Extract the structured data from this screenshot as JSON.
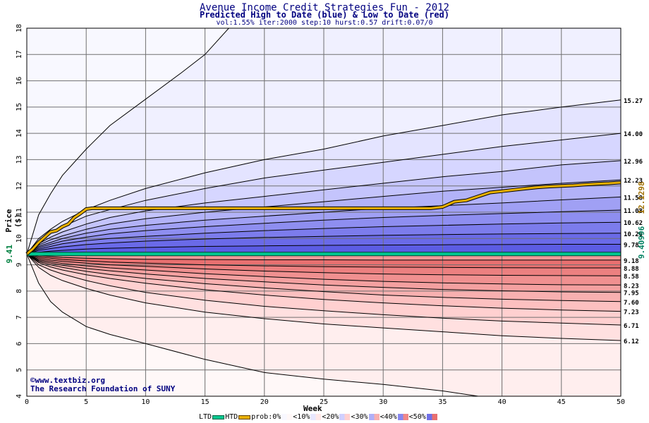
{
  "header": {
    "title": "Avenue Income Credit Strategies Fun - 2012",
    "subtitle": "Predicted High to Date (blue) &  Low to Date (red)",
    "params": "vol:1.55% iter:2000 step:10 hurst:0.57 drift:0.07/0"
  },
  "credit": {
    "line1": "©www.textbiz.org",
    "line2": "The Research Foundation of SUNY"
  },
  "legend": {
    "ltd": "LTD",
    "htd": "HTD",
    "prob": "prob:0%",
    "b10": "<10%",
    "b20": "<20%",
    "b30": "<30%",
    "b40": "<40%",
    "b50": "<50%"
  },
  "colors": {
    "ltd_line": "#00c890",
    "htd_line": "#e8b000",
    "blue_bands": [
      "#f0f0ff",
      "#e0e0ff",
      "#c8c8ff",
      "#a8a8f8",
      "#8888f0"
    ],
    "red_bands": [
      "#fff2f2",
      "#ffe0e0",
      "#ffc8c8",
      "#f8a8a8",
      "#f08080"
    ]
  },
  "chart_data": {
    "type": "area",
    "xlabel": "Week",
    "ylabel": "Price ($)",
    "xlim": [
      0,
      50
    ],
    "ylim": [
      4,
      18
    ],
    "x_ticks": [
      0,
      5,
      10,
      15,
      20,
      25,
      30,
      35,
      40,
      45,
      50
    ],
    "y_ticks": [
      4,
      5,
      6,
      7,
      8,
      9,
      10,
      11,
      12,
      13,
      14,
      15,
      16,
      17,
      18
    ],
    "start_price": "9.41",
    "start_price_value": 9.41,
    "ltd_level": 9.41,
    "ltd_label": "9.40996",
    "htd_label": "12.1298",
    "right_labels": [
      "15.27",
      "14.00",
      "12.96",
      "12.23",
      "11.58",
      "11.08",
      "10.62",
      "10.20",
      "9.78",
      "9.18",
      "8.88",
      "8.58",
      "8.23",
      "7.95",
      "7.60",
      "7.23",
      "6.71",
      "6.12"
    ],
    "upper_contours": [
      {
        "end": 18.0,
        "x": [
          0,
          1,
          2,
          3,
          5,
          7,
          10,
          13,
          15,
          17
        ],
        "y": [
          9.41,
          10.9,
          11.7,
          12.4,
          13.4,
          14.3,
          15.3,
          16.3,
          17.0,
          18.0
        ]
      },
      {
        "end": 15.27,
        "x": [
          0,
          1,
          2,
          3,
          5,
          7,
          10,
          15,
          20,
          25,
          30,
          35,
          40,
          45,
          50
        ],
        "y": [
          9.41,
          10.0,
          10.35,
          10.65,
          11.1,
          11.45,
          11.9,
          12.5,
          13.0,
          13.4,
          13.9,
          14.3,
          14.7,
          15.0,
          15.27
        ]
      },
      {
        "end": 14.0,
        "x": [
          0,
          1,
          2,
          3,
          5,
          7,
          10,
          15,
          20,
          25,
          30,
          35,
          40,
          45,
          50
        ],
        "y": [
          9.41,
          9.9,
          10.2,
          10.45,
          10.85,
          11.1,
          11.45,
          11.9,
          12.3,
          12.6,
          12.9,
          13.2,
          13.5,
          13.75,
          14.0
        ]
      },
      {
        "end": 12.96,
        "x": [
          0,
          1,
          2,
          3,
          5,
          7,
          10,
          15,
          20,
          25,
          30,
          35,
          40,
          45,
          50
        ],
        "y": [
          9.41,
          9.8,
          10.05,
          10.25,
          10.55,
          10.8,
          11.05,
          11.35,
          11.6,
          11.85,
          12.1,
          12.35,
          12.55,
          12.8,
          12.96
        ]
      },
      {
        "end": 12.23,
        "x": [
          0,
          1,
          2,
          3,
          5,
          7,
          10,
          15,
          20,
          25,
          30,
          35,
          40,
          45,
          50
        ],
        "y": [
          9.41,
          9.75,
          9.95,
          10.1,
          10.35,
          10.55,
          10.75,
          11.0,
          11.2,
          11.4,
          11.6,
          11.8,
          11.95,
          12.1,
          12.23
        ]
      },
      {
        "end": 11.58,
        "x": [
          0,
          1,
          2,
          3,
          5,
          7,
          10,
          15,
          20,
          25,
          30,
          35,
          40,
          45,
          50
        ],
        "y": [
          9.41,
          9.7,
          9.85,
          10.0,
          10.2,
          10.35,
          10.5,
          10.7,
          10.85,
          11.0,
          11.15,
          11.25,
          11.35,
          11.47,
          11.58
        ]
      },
      {
        "end": 11.08,
        "x": [
          0,
          1,
          2,
          3,
          5,
          7,
          10,
          15,
          20,
          25,
          30,
          35,
          40,
          45,
          50
        ],
        "y": [
          9.41,
          9.65,
          9.78,
          9.9,
          10.05,
          10.18,
          10.3,
          10.45,
          10.58,
          10.7,
          10.8,
          10.88,
          10.95,
          11.02,
          11.08
        ]
      },
      {
        "end": 10.62,
        "x": [
          0,
          1,
          2,
          3,
          5,
          7,
          10,
          15,
          20,
          25,
          30,
          35,
          40,
          45,
          50
        ],
        "y": [
          9.41,
          9.6,
          9.7,
          9.8,
          9.92,
          10.0,
          10.08,
          10.2,
          10.3,
          10.38,
          10.45,
          10.5,
          10.55,
          10.59,
          10.62
        ]
      },
      {
        "end": 10.2,
        "x": [
          0,
          1,
          2,
          3,
          5,
          7,
          10,
          15,
          20,
          25,
          30,
          35,
          40,
          45,
          50
        ],
        "y": [
          9.41,
          9.55,
          9.62,
          9.68,
          9.77,
          9.83,
          9.9,
          9.98,
          10.04,
          10.08,
          10.12,
          10.15,
          10.17,
          10.19,
          10.2
        ]
      },
      {
        "end": 9.78,
        "x": [
          0,
          1,
          2,
          3,
          5,
          7,
          10,
          15,
          20,
          25,
          30,
          35,
          40,
          45,
          50
        ],
        "y": [
          9.41,
          9.48,
          9.52,
          9.55,
          9.6,
          9.63,
          9.66,
          9.7,
          9.72,
          9.74,
          9.75,
          9.76,
          9.77,
          9.78,
          9.78
        ]
      }
    ],
    "lower_contours": [
      {
        "end": 4.0,
        "x": [
          0,
          1,
          2,
          3,
          5,
          7,
          10,
          15,
          20,
          25,
          30,
          35,
          38
        ],
        "y": [
          9.41,
          8.3,
          7.6,
          7.2,
          6.65,
          6.35,
          6.0,
          5.4,
          4.9,
          4.65,
          4.45,
          4.2,
          4.0
        ]
      },
      {
        "end": 6.12,
        "x": [
          0,
          1,
          2,
          3,
          5,
          7,
          10,
          15,
          20,
          25,
          30,
          35,
          40,
          45,
          50
        ],
        "y": [
          9.41,
          8.9,
          8.6,
          8.4,
          8.1,
          7.85,
          7.55,
          7.2,
          6.95,
          6.75,
          6.6,
          6.45,
          6.3,
          6.2,
          6.12
        ]
      },
      {
        "end": 6.71,
        "x": [
          0,
          1,
          2,
          3,
          5,
          7,
          10,
          15,
          20,
          25,
          30,
          35,
          40,
          45,
          50
        ],
        "y": [
          9.41,
          9.0,
          8.8,
          8.65,
          8.4,
          8.2,
          7.95,
          7.65,
          7.42,
          7.25,
          7.1,
          6.97,
          6.86,
          6.78,
          6.71
        ]
      },
      {
        "end": 7.23,
        "x": [
          0,
          1,
          2,
          3,
          5,
          7,
          10,
          15,
          20,
          25,
          30,
          35,
          40,
          45,
          50
        ],
        "y": [
          9.41,
          9.08,
          8.92,
          8.8,
          8.62,
          8.48,
          8.3,
          8.05,
          7.85,
          7.68,
          7.55,
          7.44,
          7.35,
          7.28,
          7.23
        ]
      },
      {
        "end": 7.6,
        "x": [
          0,
          1,
          2,
          3,
          5,
          7,
          10,
          15,
          20,
          25,
          30,
          35,
          40,
          45,
          50
        ],
        "y": [
          9.41,
          9.12,
          9.0,
          8.9,
          8.75,
          8.63,
          8.48,
          8.28,
          8.12,
          7.98,
          7.85,
          7.76,
          7.69,
          7.64,
          7.6
        ]
      },
      {
        "end": 7.95,
        "x": [
          0,
          1,
          2,
          3,
          5,
          7,
          10,
          15,
          20,
          25,
          30,
          35,
          40,
          45,
          50
        ],
        "y": [
          9.41,
          9.16,
          9.06,
          8.98,
          8.86,
          8.77,
          8.65,
          8.48,
          8.35,
          8.23,
          8.14,
          8.06,
          8.01,
          7.97,
          7.95
        ]
      },
      {
        "end": 8.23,
        "x": [
          0,
          1,
          2,
          3,
          5,
          7,
          10,
          15,
          20,
          25,
          30,
          35,
          40,
          45,
          50
        ],
        "y": [
          9.41,
          9.2,
          9.12,
          9.05,
          8.96,
          8.88,
          8.8,
          8.66,
          8.55,
          8.45,
          8.37,
          8.31,
          8.27,
          8.24,
          8.23
        ]
      },
      {
        "end": 8.58,
        "x": [
          0,
          1,
          2,
          3,
          5,
          7,
          10,
          15,
          20,
          25,
          30,
          35,
          40,
          45,
          50
        ],
        "y": [
          9.41,
          9.25,
          9.18,
          9.13,
          9.06,
          9.0,
          8.94,
          8.84,
          8.76,
          8.7,
          8.65,
          8.62,
          8.6,
          8.59,
          8.58
        ]
      },
      {
        "end": 8.88,
        "x": [
          0,
          1,
          2,
          3,
          5,
          7,
          10,
          15,
          20,
          25,
          30,
          35,
          40,
          45,
          50
        ],
        "y": [
          9.41,
          9.3,
          9.25,
          9.2,
          9.15,
          9.1,
          9.06,
          9.0,
          8.96,
          8.93,
          8.91,
          8.9,
          8.89,
          8.88,
          8.88
        ]
      },
      {
        "end": 9.18,
        "x": [
          0,
          1,
          2,
          3,
          5,
          7,
          10,
          15,
          20,
          25,
          30,
          35,
          40,
          45,
          50
        ],
        "y": [
          9.41,
          9.35,
          9.31,
          9.28,
          9.25,
          9.23,
          9.21,
          9.2,
          9.19,
          9.19,
          9.18,
          9.18,
          9.18,
          9.18,
          9.18
        ]
      }
    ],
    "htd_path": {
      "x": [
        0,
        0.5,
        1,
        1.5,
        2,
        2.5,
        3,
        3.5,
        4,
        4.5,
        5,
        5.5,
        6,
        8,
        10,
        15,
        20,
        25,
        30,
        34,
        35,
        36,
        37,
        38,
        39,
        40,
        41,
        42,
        43,
        44,
        45,
        46,
        47,
        48,
        49,
        50
      ],
      "y": [
        9.41,
        9.6,
        9.85,
        10.05,
        10.25,
        10.3,
        10.45,
        10.55,
        10.8,
        10.95,
        11.12,
        11.15,
        11.15,
        11.15,
        11.15,
        11.15,
        11.15,
        11.15,
        11.15,
        11.15,
        11.2,
        11.4,
        11.45,
        11.6,
        11.75,
        11.8,
        11.85,
        11.9,
        11.95,
        11.98,
        12.0,
        12.02,
        12.05,
        12.08,
        12.1,
        12.13
      ]
    }
  }
}
